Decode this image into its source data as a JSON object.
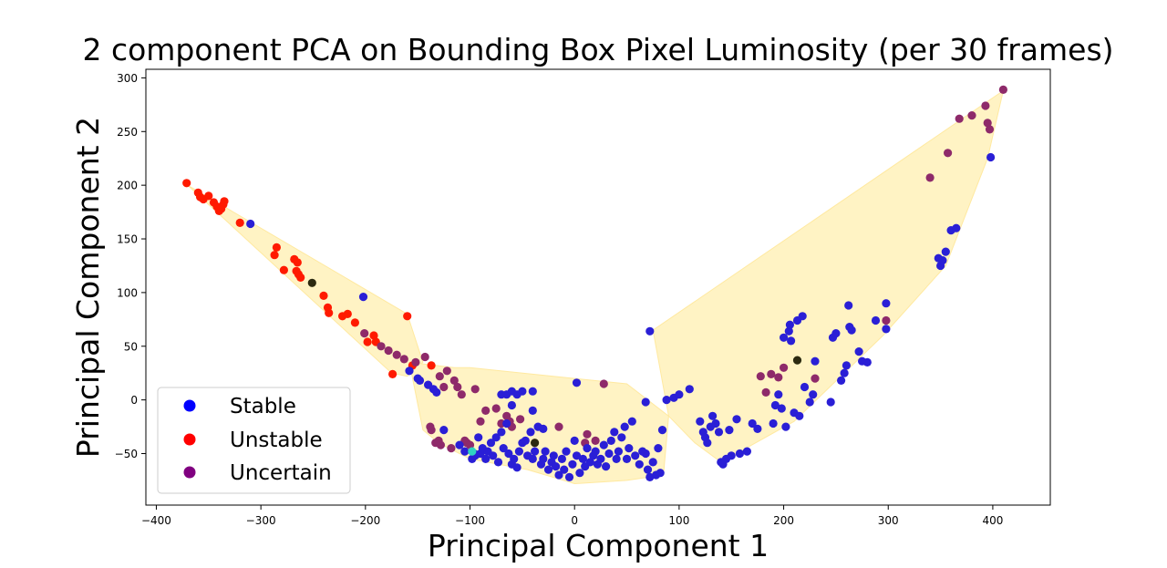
{
  "chart_data": {
    "type": "scatter",
    "title": "2 component PCA on Bounding Box Pixel Luminosity (per 30 frames)",
    "xlabel": "Principal Component 1",
    "ylabel": "Principal Component 2",
    "xlim": [
      -410,
      455
    ],
    "ylim": [
      -98,
      308
    ],
    "xticks": [
      -400,
      -300,
      -200,
      -100,
      0,
      100,
      200,
      300,
      400
    ],
    "yticks": [
      -50,
      0,
      50,
      100,
      150,
      200,
      250,
      300
    ],
    "grid": false,
    "legend": {
      "placement": "lower-left",
      "entries": [
        {
          "label": "Stable",
          "color": "#0000ff"
        },
        {
          "label": "Unstable",
          "color": "#ff0000"
        },
        {
          "label": "Uncertain",
          "color": "#800080"
        }
      ]
    },
    "hull_color": "#fff3c4",
    "hull_stroke": "#ffe9a0",
    "hulls": [
      [
        [
          -370,
          200
        ],
        [
          -160,
          80
        ],
        [
          -145,
          35
        ],
        [
          -160,
          22
        ],
        [
          -175,
          25
        ]
      ],
      [
        [
          -158,
          35
        ],
        [
          -115,
          30
        ],
        [
          -100,
          30
        ],
        [
          50,
          15
        ],
        [
          90,
          -15
        ],
        [
          85,
          -70
        ],
        [
          50,
          -75
        ],
        [
          0,
          -78
        ],
        [
          -45,
          -65
        ],
        [
          -100,
          -55
        ],
        [
          -130,
          -40
        ],
        [
          -145,
          -28
        ]
      ],
      [
        [
          410,
          288
        ],
        [
          395,
          225
        ],
        [
          355,
          125
        ],
        [
          295,
          60
        ],
        [
          210,
          -20
        ],
        [
          140,
          -58
        ],
        [
          115,
          -40
        ],
        [
          90,
          -15
        ],
        [
          75,
          65
        ]
      ]
    ],
    "series": [
      {
        "name": "Unstable",
        "color": "#ff1a00",
        "points": [
          [
            -371,
            202
          ],
          [
            -360,
            193
          ],
          [
            -358,
            189
          ],
          [
            -355,
            187
          ],
          [
            -350,
            190
          ],
          [
            -345,
            184
          ],
          [
            -342,
            180
          ],
          [
            -340,
            176
          ],
          [
            -338,
            178
          ],
          [
            -336,
            182
          ],
          [
            -335,
            185
          ],
          [
            -320,
            165
          ],
          [
            -285,
            142
          ],
          [
            -287,
            135
          ],
          [
            -278,
            121
          ],
          [
            -268,
            131
          ],
          [
            -266,
            120
          ],
          [
            -265,
            128
          ],
          [
            -264,
            117
          ],
          [
            -262,
            114
          ],
          [
            -240,
            97
          ],
          [
            -236,
            86
          ],
          [
            -235,
            81
          ],
          [
            -222,
            78
          ],
          [
            -217,
            80
          ],
          [
            -210,
            72
          ],
          [
            -198,
            54
          ],
          [
            -192,
            60
          ],
          [
            -190,
            54
          ],
          [
            -174,
            24
          ],
          [
            -160,
            78
          ],
          [
            -155,
            32
          ],
          [
            -137,
            32
          ]
        ]
      },
      {
        "name": "Uncertain",
        "color": "#8e2a6a",
        "points": [
          [
            -201,
            62
          ],
          [
            -185,
            50
          ],
          [
            -178,
            46
          ],
          [
            -170,
            42
          ],
          [
            -163,
            38
          ],
          [
            -152,
            35
          ],
          [
            -143,
            40
          ],
          [
            -138,
            -25
          ],
          [
            -137,
            -28
          ],
          [
            -133,
            -40
          ],
          [
            -130,
            -38
          ],
          [
            -129,
            22
          ],
          [
            -128,
            -42
          ],
          [
            -125,
            12
          ],
          [
            -122,
            27
          ],
          [
            -118,
            -45
          ],
          [
            -115,
            18
          ],
          [
            -112,
            12
          ],
          [
            -108,
            5
          ],
          [
            -105,
            -38
          ],
          [
            -103,
            -40
          ],
          [
            -100,
            -42
          ],
          [
            -95,
            10
          ],
          [
            -90,
            -20
          ],
          [
            -85,
            -10
          ],
          [
            -75,
            -8
          ],
          [
            -70,
            -22
          ],
          [
            -65,
            -15
          ],
          [
            -62,
            -20
          ],
          [
            -60,
            -25
          ],
          [
            -52,
            -18
          ],
          [
            -15,
            -25
          ],
          [
            10,
            -40
          ],
          [
            12,
            -32
          ],
          [
            20,
            -38
          ],
          [
            28,
            15
          ],
          [
            178,
            22
          ],
          [
            183,
            7
          ],
          [
            188,
            24
          ],
          [
            195,
            21
          ],
          [
            200,
            30
          ],
          [
            230,
            20
          ],
          [
            298,
            74
          ],
          [
            340,
            207
          ],
          [
            357,
            230
          ],
          [
            368,
            262
          ],
          [
            380,
            265
          ],
          [
            393,
            274
          ],
          [
            395,
            258
          ],
          [
            397,
            252
          ],
          [
            410,
            289
          ]
        ]
      },
      {
        "name": "Stable",
        "color": "#2a1fd6",
        "points": [
          [
            -310,
            164
          ],
          [
            -202,
            96
          ],
          [
            -158,
            27
          ],
          [
            -150,
            20
          ],
          [
            -148,
            18
          ],
          [
            -140,
            14
          ],
          [
            -135,
            10
          ],
          [
            -132,
            7
          ],
          [
            -98,
            -55
          ],
          [
            -95,
            -52
          ],
          [
            -92,
            -35
          ],
          [
            -90,
            -50
          ],
          [
            -88,
            -45
          ],
          [
            -85,
            -55
          ],
          [
            -83,
            -48
          ],
          [
            -80,
            -40
          ],
          [
            -78,
            -52
          ],
          [
            -75,
            -35
          ],
          [
            -73,
            -58
          ],
          [
            -70,
            -30
          ],
          [
            -68,
            -45
          ],
          [
            -65,
            -22
          ],
          [
            -63,
            -50
          ],
          [
            -60,
            -60
          ],
          [
            -58,
            -55
          ],
          [
            -55,
            -63
          ],
          [
            -53,
            -48
          ],
          [
            -50,
            -40
          ],
          [
            -47,
            -38
          ],
          [
            -45,
            -52
          ],
          [
            -42,
            -30
          ],
          [
            -40,
            -55
          ],
          [
            -38,
            -48
          ],
          [
            -35,
            -25
          ],
          [
            -32,
            -60
          ],
          [
            -30,
            -55
          ],
          [
            -28,
            -48
          ],
          [
            -25,
            -65
          ],
          [
            -22,
            -58
          ],
          [
            -20,
            -52
          ],
          [
            -18,
            -62
          ],
          [
            -15,
            -70
          ],
          [
            -12,
            -55
          ],
          [
            -10,
            -65
          ],
          [
            -8,
            -48
          ],
          [
            -5,
            -72
          ],
          [
            -2,
            -60
          ],
          [
            0,
            -38
          ],
          [
            2,
            -52
          ],
          [
            5,
            -68
          ],
          [
            8,
            -55
          ],
          [
            10,
            -62
          ],
          [
            12,
            -45
          ],
          [
            15,
            -58
          ],
          [
            18,
            -52
          ],
          [
            20,
            -48
          ],
          [
            22,
            -60
          ],
          [
            25,
            -55
          ],
          [
            28,
            -42
          ],
          [
            30,
            -62
          ],
          [
            33,
            -50
          ],
          [
            35,
            -38
          ],
          [
            38,
            -30
          ],
          [
            40,
            -55
          ],
          [
            42,
            -48
          ],
          [
            45,
            -35
          ],
          [
            48,
            -25
          ],
          [
            50,
            -55
          ],
          [
            52,
            -45
          ],
          [
            55,
            -20
          ],
          [
            58,
            -52
          ],
          [
            62,
            -60
          ],
          [
            65,
            -48
          ],
          [
            68,
            -50
          ],
          [
            70,
            -65
          ],
          [
            72,
            -72
          ],
          [
            75,
            -58
          ],
          [
            78,
            -70
          ],
          [
            80,
            -45
          ],
          [
            82,
            -68
          ],
          [
            84,
            -28
          ],
          [
            -70,
            5
          ],
          [
            -65,
            5
          ],
          [
            -60,
            8
          ],
          [
            -55,
            5
          ],
          [
            -50,
            8
          ],
          [
            -40,
            8
          ],
          [
            -60,
            -5
          ],
          [
            -40,
            -10
          ],
          [
            -30,
            -27
          ],
          [
            2,
            16
          ],
          [
            68,
            -2
          ],
          [
            72,
            64
          ],
          [
            88,
            0
          ],
          [
            95,
            2
          ],
          [
            100,
            5
          ],
          [
            110,
            10
          ],
          [
            120,
            -20
          ],
          [
            123,
            -30
          ],
          [
            125,
            -35
          ],
          [
            127,
            -40
          ],
          [
            130,
            -25
          ],
          [
            132,
            -15
          ],
          [
            135,
            -22
          ],
          [
            138,
            -30
          ],
          [
            140,
            -58
          ],
          [
            142,
            -60
          ],
          [
            145,
            -55
          ],
          [
            148,
            -28
          ],
          [
            150,
            -52
          ],
          [
            155,
            -18
          ],
          [
            158,
            -50
          ],
          [
            165,
            -48
          ],
          [
            170,
            -22
          ],
          [
            175,
            -27
          ],
          [
            190,
            -22
          ],
          [
            192,
            -5
          ],
          [
            195,
            5
          ],
          [
            198,
            -8
          ],
          [
            200,
            58
          ],
          [
            202,
            -25
          ],
          [
            205,
            64
          ],
          [
            206,
            70
          ],
          [
            207,
            55
          ],
          [
            210,
            -12
          ],
          [
            213,
            74
          ],
          [
            215,
            -15
          ],
          [
            218,
            78
          ],
          [
            220,
            12
          ],
          [
            225,
            -2
          ],
          [
            228,
            5
          ],
          [
            230,
            36
          ],
          [
            245,
            -2
          ],
          [
            247,
            58
          ],
          [
            250,
            62
          ],
          [
            255,
            18
          ],
          [
            258,
            25
          ],
          [
            260,
            32
          ],
          [
            262,
            88
          ],
          [
            263,
            68
          ],
          [
            265,
            65
          ],
          [
            272,
            45
          ],
          [
            275,
            36
          ],
          [
            280,
            35
          ],
          [
            288,
            74
          ],
          [
            298,
            90
          ],
          [
            298,
            66
          ],
          [
            355,
            138
          ],
          [
            348,
            132
          ],
          [
            350,
            125
          ],
          [
            352,
            130
          ],
          [
            360,
            158
          ],
          [
            365,
            160
          ],
          [
            398,
            226
          ],
          [
            -125,
            -28
          ],
          [
            -110,
            -42
          ],
          [
            -105,
            -48
          ],
          [
            -96,
            -50
          ]
        ]
      },
      {
        "name": "",
        "color": "#2c2a10",
        "points": [
          [
            -251,
            109
          ],
          [
            -38,
            -40
          ],
          [
            213,
            37
          ]
        ]
      },
      {
        "name": "",
        "color": "#2fd3c2",
        "points": [
          [
            -98,
            -48
          ]
        ]
      }
    ]
  }
}
